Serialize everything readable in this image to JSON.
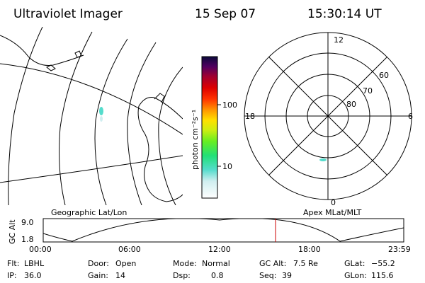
{
  "header": {
    "instrument": "Ultraviolet Imager",
    "date": "15 Sep 07",
    "time": "15:30:14 UT"
  },
  "colorbar": {
    "unit_label": "photon cm⁻²s⁻¹",
    "ticks": [
      "100",
      "10"
    ]
  },
  "panels": {
    "left_label": "Geographic Lat/Lon",
    "right_label": "Apex MLat/MLT"
  },
  "polar_plot": {
    "mlt_labels": {
      "top": "12",
      "bottom": "0",
      "left": "18",
      "right": "6"
    },
    "lat_labels": [
      "60",
      "70",
      "80"
    ]
  },
  "altitude_plot": {
    "ylabel": "GC Alt",
    "yticks": [
      "9.0",
      "1.8"
    ],
    "xticks": [
      "00:00",
      "06:00",
      "12:00",
      "18:00",
      "23:59"
    ],
    "marker_color": "#cc0000"
  },
  "status": {
    "flt_label": "Flt:",
    "flt_value": "LBHL",
    "door_label": "Door:",
    "door_value": "Open",
    "mode_label": "Mode:",
    "mode_value": "Normal",
    "gcalt_label": "GC Alt:",
    "gcalt_value": "7.5 Re",
    "glat_label": "GLat:",
    "glat_value": "−55.2",
    "ip_label": "IP:",
    "ip_value": "36.0",
    "gain_label": "Gain:",
    "gain_value": "14",
    "dsp_label": "Dsp:",
    "dsp_value": "0.8",
    "seq_label": "Seq:",
    "seq_value": "39",
    "glon_label": "GLon:",
    "glon_value": "115.6"
  }
}
